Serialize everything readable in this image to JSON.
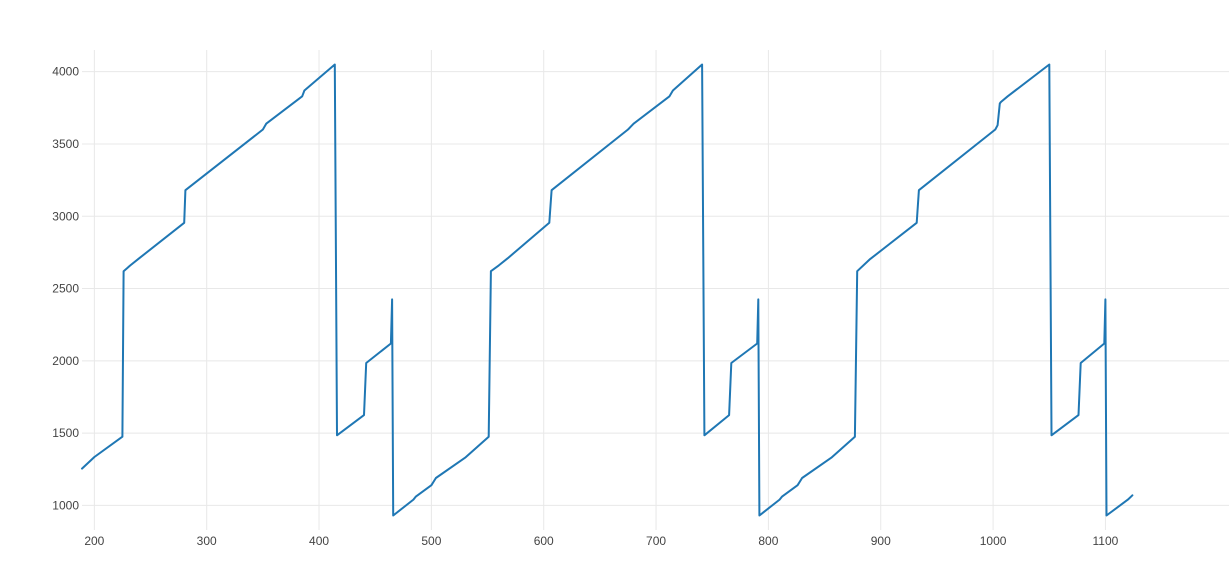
{
  "chart_data": {
    "type": "line",
    "title": "",
    "xlabel": "",
    "ylabel": "",
    "xlim": [
      189,
      1210
    ],
    "ylim": [
      830,
      4150
    ],
    "x_ticks": [
      200,
      300,
      400,
      500,
      600,
      700,
      800,
      900,
      1000,
      1100
    ],
    "y_ticks": [
      1000,
      1500,
      2000,
      2500,
      3000,
      3500,
      4000
    ],
    "x_tick_labels": [
      "200",
      "300",
      "400",
      "500",
      "600",
      "700",
      "800",
      "900",
      "1000",
      "1100"
    ],
    "y_tick_labels": [
      "1000",
      "1500",
      "2000",
      "2500",
      "3000",
      "3500",
      "4000"
    ],
    "grid": true,
    "legend": "none",
    "series": [
      {
        "color": "#1f77b4",
        "x": [
          189,
          200,
          225,
          226,
          232,
          240,
          280,
          281,
          350,
          353,
          385,
          387,
          414,
          416,
          440,
          442,
          464,
          465,
          466,
          484,
          486,
          500,
          504,
          530,
          551,
          553,
          560,
          568,
          605,
          607,
          675,
          680,
          712,
          715,
          741,
          743,
          765,
          767,
          790,
          791,
          792,
          810,
          812,
          826,
          830,
          856,
          877,
          879,
          890,
          932,
          934,
          1002,
          1004,
          1006,
          1007,
          1013,
          1050,
          1052,
          1076,
          1078,
          1099,
          1100,
          1101,
          1120,
          1124
        ],
        "y": [
          1255,
          1335,
          1475,
          2620,
          2660,
          2710,
          2955,
          3180,
          3600,
          3640,
          3830,
          3870,
          4050,
          1485,
          1625,
          1985,
          2120,
          2425,
          930,
          1040,
          1060,
          1140,
          1190,
          1330,
          1475,
          2620,
          2660,
          2710,
          2955,
          3180,
          3600,
          3640,
          3830,
          3870,
          4050,
          1485,
          1625,
          1985,
          2120,
          2425,
          930,
          1040,
          1060,
          1140,
          1190,
          1330,
          1475,
          2620,
          2700,
          2955,
          3180,
          3600,
          3630,
          3780,
          3790,
          3830,
          4050,
          1485,
          1625,
          1985,
          2120,
          2425,
          930,
          1040,
          1070
        ]
      }
    ]
  }
}
